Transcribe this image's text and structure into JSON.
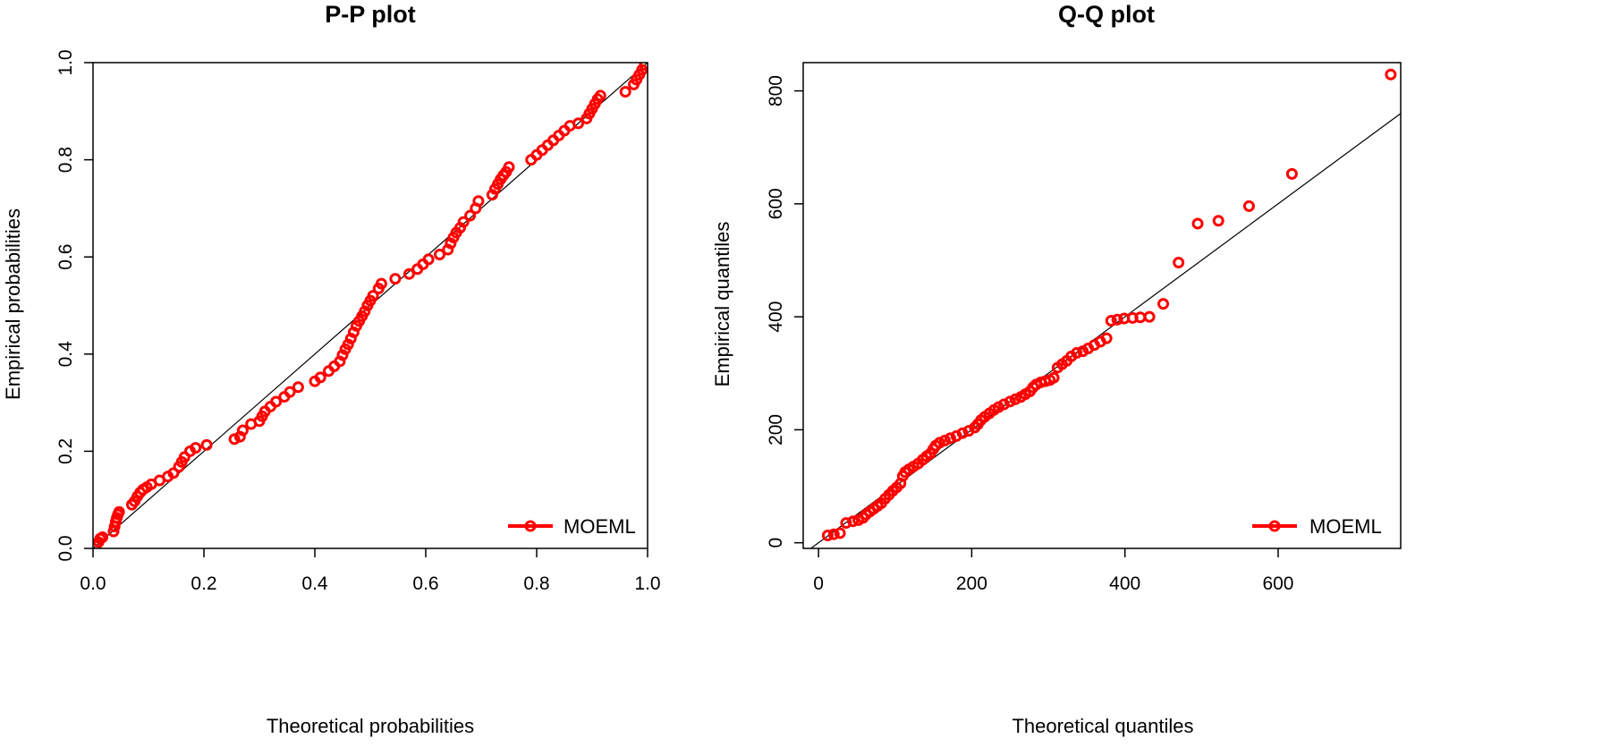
{
  "chart_data": [
    {
      "type": "scatter",
      "title": "P-P plot",
      "xlabel": "Theoretical probabilities",
      "ylabel": "Empirical probabilities",
      "xlim": [
        0,
        1
      ],
      "ylim": [
        0,
        1
      ],
      "xticks": [
        "0.0",
        "0.2",
        "0.4",
        "0.6",
        "0.8",
        "1.0"
      ],
      "yticks": [
        "0.0",
        "0.2",
        "0.4",
        "0.6",
        "0.8",
        "1.0"
      ],
      "reference_line": "y = x",
      "grid": false,
      "legend": {
        "position": "bottom-right",
        "entries": [
          {
            "name": "MOEML",
            "color": "#ff0000"
          }
        ]
      },
      "series": [
        {
          "name": "MOEML",
          "color": "#ff0000",
          "points": [
            [
              0.005,
              0.005
            ],
            [
              0.01,
              0.013
            ],
            [
              0.013,
              0.02
            ],
            [
              0.017,
              0.023
            ],
            [
              0.037,
              0.035
            ],
            [
              0.039,
              0.045
            ],
            [
              0.041,
              0.055
            ],
            [
              0.043,
              0.063
            ],
            [
              0.045,
              0.07
            ],
            [
              0.047,
              0.075
            ],
            [
              0.07,
              0.09
            ],
            [
              0.075,
              0.097
            ],
            [
              0.08,
              0.107
            ],
            [
              0.085,
              0.115
            ],
            [
              0.09,
              0.121
            ],
            [
              0.097,
              0.126
            ],
            [
              0.105,
              0.132
            ],
            [
              0.12,
              0.14
            ],
            [
              0.135,
              0.148
            ],
            [
              0.145,
              0.155
            ],
            [
              0.155,
              0.168
            ],
            [
              0.16,
              0.178
            ],
            [
              0.165,
              0.188
            ],
            [
              0.175,
              0.2
            ],
            [
              0.185,
              0.207
            ],
            [
              0.205,
              0.213
            ],
            [
              0.255,
              0.225
            ],
            [
              0.265,
              0.23
            ],
            [
              0.27,
              0.243
            ],
            [
              0.285,
              0.256
            ],
            [
              0.3,
              0.262
            ],
            [
              0.305,
              0.272
            ],
            [
              0.31,
              0.282
            ],
            [
              0.32,
              0.292
            ],
            [
              0.33,
              0.302
            ],
            [
              0.345,
              0.312
            ],
            [
              0.355,
              0.322
            ],
            [
              0.37,
              0.332
            ],
            [
              0.4,
              0.344
            ],
            [
              0.41,
              0.352
            ],
            [
              0.425,
              0.365
            ],
            [
              0.435,
              0.375
            ],
            [
              0.445,
              0.385
            ],
            [
              0.45,
              0.398
            ],
            [
              0.455,
              0.41
            ],
            [
              0.46,
              0.42
            ],
            [
              0.465,
              0.432
            ],
            [
              0.47,
              0.445
            ],
            [
              0.475,
              0.458
            ],
            [
              0.48,
              0.468
            ],
            [
              0.485,
              0.478
            ],
            [
              0.49,
              0.488
            ],
            [
              0.495,
              0.5
            ],
            [
              0.5,
              0.51
            ],
            [
              0.505,
              0.52
            ],
            [
              0.515,
              0.535
            ],
            [
              0.52,
              0.545
            ],
            [
              0.545,
              0.555
            ],
            [
              0.57,
              0.565
            ],
            [
              0.585,
              0.575
            ],
            [
              0.595,
              0.585
            ],
            [
              0.605,
              0.595
            ],
            [
              0.625,
              0.605
            ],
            [
              0.64,
              0.615
            ],
            [
              0.645,
              0.628
            ],
            [
              0.65,
              0.64
            ],
            [
              0.655,
              0.65
            ],
            [
              0.662,
              0.66
            ],
            [
              0.668,
              0.672
            ],
            [
              0.68,
              0.685
            ],
            [
              0.69,
              0.7
            ],
            [
              0.695,
              0.715
            ],
            [
              0.72,
              0.728
            ],
            [
              0.725,
              0.74
            ],
            [
              0.73,
              0.75
            ],
            [
              0.735,
              0.76
            ],
            [
              0.74,
              0.768
            ],
            [
              0.745,
              0.775
            ],
            [
              0.75,
              0.785
            ],
            [
              0.79,
              0.8
            ],
            [
              0.8,
              0.81
            ],
            [
              0.81,
              0.82
            ],
            [
              0.82,
              0.83
            ],
            [
              0.83,
              0.84
            ],
            [
              0.84,
              0.85
            ],
            [
              0.85,
              0.86
            ],
            [
              0.86,
              0.87
            ],
            [
              0.875,
              0.875
            ],
            [
              0.89,
              0.885
            ],
            [
              0.895,
              0.895
            ],
            [
              0.9,
              0.905
            ],
            [
              0.905,
              0.915
            ],
            [
              0.91,
              0.925
            ],
            [
              0.915,
              0.932
            ],
            [
              0.96,
              0.94
            ],
            [
              0.975,
              0.955
            ],
            [
              0.98,
              0.965
            ],
            [
              0.985,
              0.975
            ],
            [
              0.99,
              0.985
            ],
            [
              0.995,
              0.995
            ]
          ]
        }
      ]
    },
    {
      "type": "scatter",
      "title": "Q-Q plot",
      "xlabel": "Theoretical quantiles",
      "ylabel": "Empirical quantiles",
      "xlim": [
        -20,
        760
      ],
      "ylim": [
        -10,
        850
      ],
      "xticks": [
        "0",
        "200",
        "400",
        "600"
      ],
      "yticks": [
        "0",
        "200",
        "400",
        "600",
        "800"
      ],
      "reference_line": "y = x",
      "grid": false,
      "legend": {
        "position": "bottom-right",
        "entries": [
          {
            "name": "MOEML",
            "color": "#ff0000"
          }
        ]
      },
      "series": [
        {
          "name": "MOEML",
          "color": "#ff0000",
          "points": [
            [
              12,
              13
            ],
            [
              20,
              15
            ],
            [
              28,
              17
            ],
            [
              36,
              35
            ],
            [
              45,
              38
            ],
            [
              52,
              40
            ],
            [
              58,
              44
            ],
            [
              62,
              50
            ],
            [
              67,
              55
            ],
            [
              72,
              60
            ],
            [
              77,
              65
            ],
            [
              82,
              70
            ],
            [
              87,
              78
            ],
            [
              92,
              85
            ],
            [
              97,
              92
            ],
            [
              102,
              98
            ],
            [
              107,
              105
            ],
            [
              110,
              118
            ],
            [
              113,
              125
            ],
            [
              118,
              130
            ],
            [
              124,
              135
            ],
            [
              130,
              140
            ],
            [
              136,
              147
            ],
            [
              141,
              153
            ],
            [
              146,
              158
            ],
            [
              150,
              166
            ],
            [
              153,
              172
            ],
            [
              158,
              177
            ],
            [
              165,
              181
            ],
            [
              172,
              185
            ],
            [
              180,
              189
            ],
            [
              188,
              194
            ],
            [
              196,
              198
            ],
            [
              204,
              204
            ],
            [
              208,
              210
            ],
            [
              212,
              217
            ],
            [
              217,
              223
            ],
            [
              223,
              229
            ],
            [
              229,
              235
            ],
            [
              235,
              240
            ],
            [
              242,
              245
            ],
            [
              250,
              250
            ],
            [
              257,
              254
            ],
            [
              264,
              258
            ],
            [
              270,
              263
            ],
            [
              276,
              268
            ],
            [
              280,
              275
            ],
            [
              284,
              280
            ],
            [
              290,
              284
            ],
            [
              296,
              286
            ],
            [
              302,
              288
            ],
            [
              307,
              292
            ],
            [
              312,
              310
            ],
            [
              318,
              316
            ],
            [
              324,
              322
            ],
            [
              330,
              330
            ],
            [
              337,
              336
            ],
            [
              345,
              339
            ],
            [
              352,
              344
            ],
            [
              360,
              350
            ],
            [
              368,
              356
            ],
            [
              376,
              362
            ],
            [
              382,
              393
            ],
            [
              390,
              395
            ],
            [
              399,
              397
            ],
            [
              410,
              398
            ],
            [
              420,
              399
            ],
            [
              432,
              400
            ],
            [
              450,
              423
            ],
            [
              470,
              496
            ],
            [
              495,
              565
            ],
            [
              522,
              570
            ],
            [
              562,
              596
            ],
            [
              618,
              653
            ],
            [
              747,
              829
            ]
          ]
        }
      ]
    }
  ]
}
